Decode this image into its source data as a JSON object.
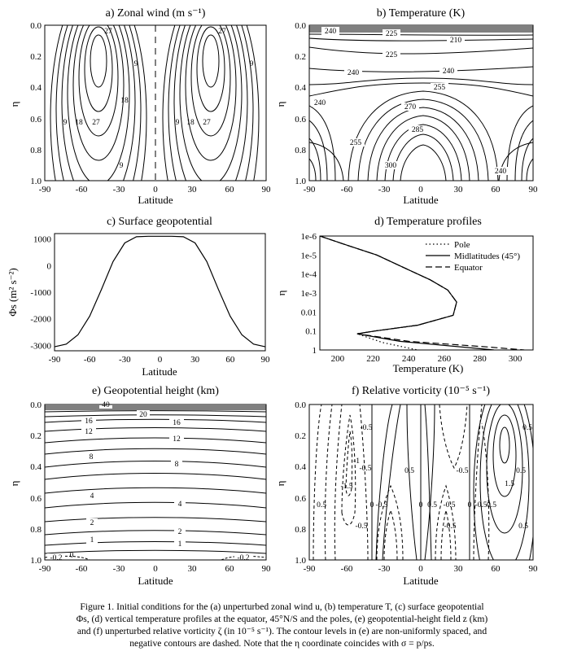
{
  "panels": [
    {
      "id": "a",
      "title": "a) Zonal wind (m s⁻¹)",
      "ylabel": "η",
      "xlabel": "Latitude",
      "yticks": [
        "0.0",
        "0.2",
        "0.4",
        "0.6",
        "0.8",
        "1.0"
      ],
      "xticks": [
        "-90",
        "-60",
        "-30",
        "0",
        "30",
        "60",
        "90"
      ],
      "contour_labels": [
        "27",
        "27",
        "9",
        "18",
        "9",
        "18",
        "27",
        "9",
        "18",
        "27",
        "9",
        "9"
      ]
    },
    {
      "id": "b",
      "title": "b) Temperature (K)",
      "ylabel": "η",
      "xlabel": "Latitude",
      "yticks": [
        "0.0",
        "0.2",
        "0.4",
        "0.6",
        "0.8",
        "1.0"
      ],
      "xticks": [
        "-90",
        "-60",
        "-30",
        "0",
        "30",
        "60",
        "90"
      ],
      "contour_labels": [
        "240",
        "225",
        "210",
        "225",
        "240",
        "240",
        "255",
        "240",
        "270",
        "285",
        "255",
        "300",
        "240"
      ]
    },
    {
      "id": "c",
      "title": "c) Surface geopotential",
      "ylabel": "Φs (m² s⁻²)",
      "xlabel": "Latitude",
      "yticks": [
        "1000",
        "0",
        "-1000",
        "-2000",
        "-3000"
      ],
      "xticks": [
        "-90",
        "-60",
        "-30",
        "0",
        "30",
        "60",
        "90"
      ]
    },
    {
      "id": "d",
      "title": "d) Temperature profiles",
      "ylabel": "η",
      "xlabel": "Temperature (K)",
      "yticks": [
        "1e-6",
        "1e-5",
        "1e-4",
        "1e-3",
        "0.01",
        "0.1",
        "1"
      ],
      "xticks": [
        "200",
        "220",
        "240",
        "260",
        "280",
        "300"
      ],
      "legend": [
        "Pole",
        "Midlatitudes (45°)",
        "Equator"
      ]
    },
    {
      "id": "e",
      "title": "e) Geopotential height (km)",
      "ylabel": "η",
      "xlabel": "Latitude",
      "yticks": [
        "0.0",
        "0.2",
        "0.4",
        "0.6",
        "0.8",
        "1.0"
      ],
      "xticks": [
        "-90",
        "-60",
        "-30",
        "0",
        "30",
        "60",
        "90"
      ],
      "contour_labels": [
        "40",
        "20",
        "16",
        "16",
        "12",
        "12",
        "8",
        "8",
        "4",
        "4",
        "2",
        "2",
        "1",
        "1",
        "-0.2",
        "0",
        "-0.2"
      ]
    },
    {
      "id": "f",
      "title": "f) Relative vorticity (10⁻⁵ s⁻¹)",
      "ylabel": "η",
      "xlabel": "Latitude",
      "yticks": [
        "0.0",
        "0.2",
        "0.4",
        "0.6",
        "0.8",
        "1.0"
      ],
      "xticks": [
        "-90",
        "-60",
        "-30",
        "0",
        "30",
        "60",
        "90"
      ],
      "contour_labels": [
        "-0.5",
        "0.5",
        "-1",
        "-0.5",
        "0.5",
        "-0.5",
        "0.5",
        "1.5",
        "-1.5",
        "0.5",
        "0",
        "-0.5",
        "0",
        "0.5",
        "-0.5",
        "0",
        "-0.5",
        "0.5",
        "-0.5",
        "-0.5",
        "0.5"
      ]
    }
  ],
  "caption": {
    "line1": "Figure 1.   Initial conditions for the (a) unperturbed zonal wind u, (b) temperature T, (c) surface geopotential",
    "line2": "Φs, (d) vertical temperature profiles at the equator, 45°N/S and the poles, (e) geopotential-height field z (km)",
    "line3": "and (f) unperturbed relative vorticity ζ (in 10⁻⁵ s⁻¹). The contour levels in (e) are non-uniformly spaced, and",
    "line4": "negative contours are dashed. Note that the η coordinate coincides with σ = p/ps."
  },
  "chart_data": [
    {
      "type": "line",
      "title": "c) Surface geopotential",
      "xlabel": "Latitude",
      "ylabel": "Φs (m² s⁻²)",
      "xlim": [
        -90,
        90
      ],
      "ylim": [
        -3200,
        1200
      ],
      "series": [
        {
          "x": [
            -90,
            -80,
            -70,
            -60,
            -50,
            -40,
            -30,
            -20,
            -10,
            0,
            10,
            20,
            30,
            40,
            50,
            60,
            70,
            80,
            90
          ],
          "values": [
            -3050,
            -2950,
            -2600,
            -1900,
            -900,
            150,
            850,
            1080,
            1100,
            1100,
            1100,
            1080,
            850,
            150,
            -900,
            -1900,
            -2600,
            -2950,
            -3050
          ]
        }
      ]
    },
    {
      "type": "line",
      "title": "d) Temperature profiles",
      "xlabel": "Temperature (K)",
      "ylabel": "η",
      "xlim": [
        190,
        310
      ],
      "y_scale": "log",
      "ylim": [
        1,
        1e-06
      ],
      "series": [
        {
          "name": "Pole",
          "style": "dotted",
          "x": [
            190,
            205,
            222,
            238,
            252,
            262,
            267,
            265,
            245,
            221,
            211,
            225,
            245
          ],
          "y": [
            1e-06,
            3e-06,
            1e-05,
            5e-05,
            0.0002,
            0.0007,
            0.003,
            0.015,
            0.05,
            0.1,
            0.14,
            0.4,
            1
          ]
        },
        {
          "name": "Midlatitudes (45°)",
          "style": "solid",
          "x": [
            190,
            205,
            222,
            238,
            252,
            262,
            267,
            265,
            245,
            221,
            211,
            235,
            270,
            288
          ],
          "y": [
            1e-06,
            3e-06,
            1e-05,
            5e-05,
            0.0002,
            0.0007,
            0.003,
            0.015,
            0.05,
            0.1,
            0.14,
            0.35,
            0.7,
            1
          ]
        },
        {
          "name": "Equator",
          "style": "dashed",
          "x": [
            190,
            205,
            222,
            238,
            252,
            262,
            267,
            265,
            245,
            221,
            211,
            240,
            285,
            305
          ],
          "y": [
            1e-06,
            3e-06,
            1e-05,
            5e-05,
            0.0002,
            0.0007,
            0.003,
            0.015,
            0.05,
            0.1,
            0.14,
            0.35,
            0.7,
            1
          ]
        }
      ]
    }
  ]
}
